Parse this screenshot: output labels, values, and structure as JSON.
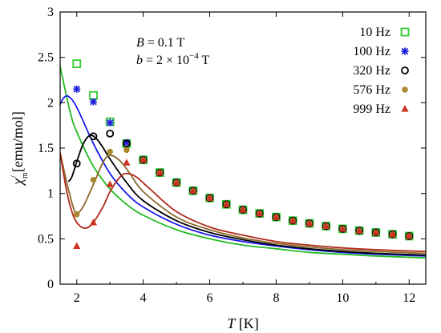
{
  "chart_data": {
    "type": "scatter",
    "xlabel_italic": "T",
    "xlabel_unit": "[K]",
    "ylabel_symbol": "χ",
    "ylabel_sup": "/",
    "ylabel_sub": "m",
    "ylabel_unit": "[emu/mol]",
    "xlim": [
      1.5,
      12.5
    ],
    "ylim": [
      0,
      3
    ],
    "xticks": [
      2,
      4,
      6,
      8,
      10,
      12
    ],
    "yticks": [
      0,
      0.5,
      1,
      1.5,
      2,
      2.5,
      3
    ],
    "grid": false,
    "legend_position": "top-right",
    "annotations": {
      "line1_var": "B",
      "line1_value": " = 0.1 T",
      "line2_var": "b",
      "line2_value": " = 2 × 10",
      "line2_exp": "−4",
      "line2_unit": " T"
    },
    "series": [
      {
        "name": "10 Hz",
        "marker": "square",
        "color": "#33cc33",
        "fit_color": "#22bb22",
        "x": [
          2,
          2.5,
          3,
          3.5,
          4,
          4.5,
          5,
          5.5,
          6,
          6.5,
          7,
          7.5,
          8,
          8.5,
          9,
          9.5,
          10,
          10.5,
          11,
          11.5,
          12
        ],
        "y": [
          2.43,
          2.08,
          1.79,
          1.55,
          1.37,
          1.23,
          1.12,
          1.03,
          0.95,
          0.88,
          0.82,
          0.78,
          0.74,
          0.7,
          0.67,
          0.64,
          0.61,
          0.59,
          0.57,
          0.55,
          0.53
        ],
        "fit": [
          [
            1.5,
            2.4
          ],
          [
            1.8,
            1.9
          ],
          [
            2,
            1.68
          ],
          [
            2.5,
            1.3
          ],
          [
            3,
            1.05
          ],
          [
            3.5,
            0.88
          ],
          [
            4,
            0.76
          ],
          [
            5,
            0.6
          ],
          [
            6,
            0.5
          ],
          [
            7,
            0.43
          ],
          [
            8,
            0.39
          ],
          [
            9,
            0.35
          ],
          [
            10,
            0.33
          ],
          [
            11,
            0.31
          ],
          [
            12.5,
            0.29
          ]
        ]
      },
      {
        "name": "100 Hz",
        "marker": "star",
        "color": "#2222dd",
        "fit_color": "#1a1aee",
        "x": [
          2,
          2.5,
          3,
          3.5,
          4,
          4.5,
          5,
          5.5,
          6,
          6.5,
          7,
          7.5,
          8,
          8.5,
          9,
          9.5,
          10,
          10.5,
          11,
          11.5,
          12
        ],
        "y": [
          2.15,
          2.01,
          1.78,
          1.56,
          1.37,
          1.23,
          1.12,
          1.03,
          0.95,
          0.88,
          0.82,
          0.78,
          0.74,
          0.7,
          0.67,
          0.64,
          0.61,
          0.59,
          0.57,
          0.55,
          0.53
        ],
        "fit": [
          [
            1.5,
            1.98
          ],
          [
            1.6,
            2.05
          ],
          [
            1.75,
            2.07
          ],
          [
            2,
            1.95
          ],
          [
            2.5,
            1.55
          ],
          [
            3,
            1.22
          ],
          [
            3.5,
            1.0
          ],
          [
            4,
            0.85
          ],
          [
            5,
            0.66
          ],
          [
            6,
            0.54
          ],
          [
            7,
            0.47
          ],
          [
            8,
            0.42
          ],
          [
            9,
            0.38
          ],
          [
            10,
            0.35
          ],
          [
            11,
            0.33
          ],
          [
            12.5,
            0.31
          ]
        ]
      },
      {
        "name": "320 Hz",
        "marker": "circle",
        "color": "#000000",
        "fit_color": "#000000",
        "x": [
          2,
          2.5,
          3,
          3.5,
          4,
          4.5,
          5,
          5.5,
          6,
          6.5,
          7,
          7.5,
          8,
          8.5,
          9,
          9.5,
          10,
          10.5,
          11,
          11.5,
          12
        ],
        "y": [
          1.33,
          1.63,
          1.66,
          1.55,
          1.37,
          1.23,
          1.12,
          1.03,
          0.95,
          0.88,
          0.82,
          0.78,
          0.74,
          0.7,
          0.67,
          0.64,
          0.61,
          0.59,
          0.57,
          0.55,
          0.53
        ],
        "fit": [
          [
            1.75,
            1.13
          ],
          [
            1.85,
            1.18
          ],
          [
            2,
            1.35
          ],
          [
            2.2,
            1.55
          ],
          [
            2.4,
            1.64
          ],
          [
            2.6,
            1.6
          ],
          [
            2.8,
            1.5
          ],
          [
            3,
            1.38
          ],
          [
            3.5,
            1.12
          ],
          [
            4,
            0.92
          ],
          [
            5,
            0.7
          ],
          [
            6,
            0.57
          ],
          [
            7,
            0.49
          ],
          [
            8,
            0.43
          ],
          [
            9,
            0.39
          ],
          [
            10,
            0.36
          ],
          [
            11,
            0.34
          ],
          [
            12.5,
            0.32
          ]
        ]
      },
      {
        "name": "576 Hz",
        "marker": "dot",
        "color": "#aa8833",
        "fit_color": "#8b6a2a",
        "x": [
          2,
          2.5,
          3,
          3.5,
          4,
          4.5,
          5,
          5.5,
          6,
          6.5,
          7,
          7.5,
          8,
          8.5,
          9,
          9.5,
          10,
          10.5,
          11,
          11.5,
          12
        ],
        "y": [
          0.77,
          1.15,
          1.46,
          1.48,
          1.37,
          1.23,
          1.12,
          1.03,
          0.95,
          0.88,
          0.82,
          0.78,
          0.74,
          0.7,
          0.67,
          0.64,
          0.61,
          0.59,
          0.57,
          0.55,
          0.53
        ],
        "fit": [
          [
            1.5,
            1.45
          ],
          [
            1.7,
            1.12
          ],
          [
            1.9,
            0.84
          ],
          [
            2,
            0.78
          ],
          [
            2.2,
            0.86
          ],
          [
            2.5,
            1.1
          ],
          [
            2.8,
            1.35
          ],
          [
            3,
            1.42
          ],
          [
            3.3,
            1.36
          ],
          [
            3.6,
            1.22
          ],
          [
            4,
            1.02
          ],
          [
            5,
            0.74
          ],
          [
            6,
            0.6
          ],
          [
            7,
            0.51
          ],
          [
            8,
            0.45
          ],
          [
            9,
            0.41
          ],
          [
            10,
            0.38
          ],
          [
            11,
            0.36
          ],
          [
            12.5,
            0.34
          ]
        ]
      },
      {
        "name": "999 Hz",
        "marker": "triangle",
        "color": "#cc3322",
        "fit_color": "#b02a1c",
        "x": [
          2,
          2.5,
          3,
          3.5,
          4,
          4.5,
          5,
          5.5,
          6,
          6.5,
          7,
          7.5,
          8,
          8.5,
          9,
          9.5,
          10,
          10.5,
          11,
          11.5,
          12
        ],
        "y": [
          0.42,
          0.68,
          1.1,
          1.34,
          1.37,
          1.23,
          1.12,
          1.03,
          0.95,
          0.88,
          0.82,
          0.78,
          0.74,
          0.7,
          0.67,
          0.64,
          0.61,
          0.59,
          0.57,
          0.55,
          0.53
        ],
        "fit": [
          [
            1.5,
            1.45
          ],
          [
            1.7,
            1.02
          ],
          [
            1.9,
            0.75
          ],
          [
            2.1,
            0.64
          ],
          [
            2.3,
            0.62
          ],
          [
            2.5,
            0.68
          ],
          [
            2.8,
            0.86
          ],
          [
            3,
            1.02
          ],
          [
            3.3,
            1.18
          ],
          [
            3.5,
            1.22
          ],
          [
            3.8,
            1.18
          ],
          [
            4.2,
            1.05
          ],
          [
            5,
            0.8
          ],
          [
            6,
            0.63
          ],
          [
            7,
            0.54
          ],
          [
            8,
            0.47
          ],
          [
            9,
            0.43
          ],
          [
            10,
            0.4
          ],
          [
            11,
            0.38
          ],
          [
            12.5,
            0.36
          ]
        ]
      }
    ]
  }
}
